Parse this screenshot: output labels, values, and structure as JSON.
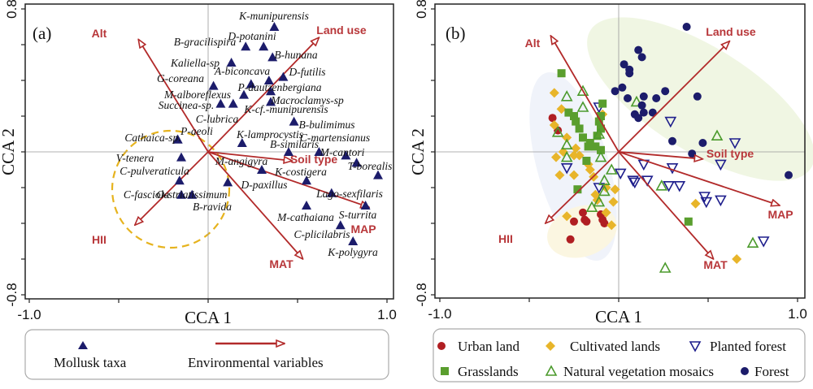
{
  "chart_data": [
    {
      "type": "scatter",
      "panel_label": "(a)",
      "xlabel": "CCA 1",
      "ylabel": "CCA 2",
      "xlim": [
        -1.0,
        1.0
      ],
      "ylim": [
        -0.8,
        0.8
      ],
      "x_tick_labels": [
        "-1.0",
        "1.0"
      ],
      "y_tick_labels": [
        "0.8",
        "-0.8"
      ],
      "colors": {
        "taxa": "#1c1c6b",
        "arrow": "#b22a2a",
        "env_label": "#b8373a",
        "circle": "#e6b31e"
      },
      "taxa": [
        {
          "name": "K-munipurensis",
          "x": 0.37,
          "y": 0.7
        },
        {
          "name": "B-gracilispira",
          "x": 0.21,
          "y": 0.59
        },
        {
          "name": "D-potanini",
          "x": 0.31,
          "y": 0.59
        },
        {
          "name": "B-hunana",
          "x": 0.36,
          "y": 0.53
        },
        {
          "name": "Kaliella-sp",
          "x": 0.13,
          "y": 0.5
        },
        {
          "name": "G-coreana",
          "x": 0.03,
          "y": 0.37
        },
        {
          "name": "A-biconcava",
          "x": 0.34,
          "y": 0.4
        },
        {
          "name": "D-futilis",
          "x": 0.42,
          "y": 0.42
        },
        {
          "name": "P-dautzenbergiana",
          "x": 0.24,
          "y": 0.38
        },
        {
          "name": "M-alboreflexus",
          "x": 0.2,
          "y": 0.32
        },
        {
          "name": "Macroclamys-sp",
          "x": 0.35,
          "y": 0.34
        },
        {
          "name": "K-cf.-munipurensis",
          "x": 0.35,
          "y": 0.28
        },
        {
          "name": "Succinea-sp.",
          "x": 0.07,
          "y": 0.27
        },
        {
          "name": "C-lubrica",
          "x": 0.14,
          "y": 0.27
        },
        {
          "name": "B-bulimimus",
          "x": 0.48,
          "y": 0.17
        },
        {
          "name": "Cathaica-sp.",
          "x": -0.17,
          "y": 0.07
        },
        {
          "name": "P-aeoli",
          "x": -0.17,
          "y": 0.07
        },
        {
          "name": "K-lamprocystis",
          "x": 0.19,
          "y": 0.05
        },
        {
          "name": "B-similaris",
          "x": 0.45,
          "y": 0.0
        },
        {
          "name": "C-martensianus",
          "x": 0.62,
          "y": 0.0
        },
        {
          "name": "M-cantori",
          "x": 0.77,
          "y": -0.02
        },
        {
          "name": "T-borealis",
          "x": 0.83,
          "y": -0.06
        },
        {
          "name": "Lago-sexfilaris",
          "x": 0.95,
          "y": -0.13
        },
        {
          "name": "V-tenera",
          "x": -0.15,
          "y": -0.03
        },
        {
          "name": "C-pulveraticula",
          "x": -0.16,
          "y": -0.16
        },
        {
          "name": "C-fasciola",
          "x": -0.15,
          "y": -0.24
        },
        {
          "name": "B-ravida",
          "x": -0.09,
          "y": -0.24
        },
        {
          "name": "O-striatissimum",
          "x": 0.11,
          "y": -0.17
        },
        {
          "name": "M-angigyra",
          "x": 0.3,
          "y": -0.1
        },
        {
          "name": "D-paxillus",
          "x": 0.55,
          "y": -0.16
        },
        {
          "name": "K-costigera",
          "x": 0.69,
          "y": -0.23
        },
        {
          "name": "M-cathaiana",
          "x": 0.55,
          "y": -0.3
        },
        {
          "name": "S-turrita",
          "x": 0.88,
          "y": -0.3
        },
        {
          "name": "C-plicilabris",
          "x": 0.74,
          "y": -0.41
        },
        {
          "name": "K-polygyra",
          "x": 0.81,
          "y": -0.5
        }
      ],
      "env_variables": [
        {
          "name": "Alt",
          "x": -0.39,
          "y": 0.63
        },
        {
          "name": "Land use",
          "x": 0.62,
          "y": 0.64
        },
        {
          "name": "Soil type",
          "x": 0.47,
          "y": -0.05
        },
        {
          "name": "MAP",
          "x": 0.9,
          "y": -0.31
        },
        {
          "name": "MAT",
          "x": 0.53,
          "y": -0.6
        },
        {
          "name": "HII",
          "x": -0.41,
          "y": -0.41
        }
      ],
      "legend": {
        "taxa": "Mollusk taxa",
        "arrows": "Environmental variables",
        "placement": "bottom"
      }
    },
    {
      "type": "scatter",
      "panel_label": "(b)",
      "xlabel": "CCA 1",
      "ylabel": "CCA 2",
      "xlim": [
        -1.0,
        1.0
      ],
      "ylim": [
        -0.8,
        0.8
      ],
      "x_tick_labels": [
        "-1.0",
        "1.0"
      ],
      "y_tick_labels": [
        "0.8",
        "-0.8"
      ],
      "env_variables": [
        {
          "name": "Alt",
          "x": -0.38,
          "y": 0.65
        },
        {
          "name": "Land use",
          "x": 0.62,
          "y": 0.62
        },
        {
          "name": "Soil type",
          "x": 0.47,
          "y": -0.04
        },
        {
          "name": "MAP",
          "x": 0.9,
          "y": -0.3
        },
        {
          "name": "MAT",
          "x": 0.53,
          "y": -0.6
        },
        {
          "name": "HII",
          "x": -0.41,
          "y": -0.4
        }
      ],
      "series": [
        {
          "name": "Urban land",
          "marker": "circle",
          "color": "#b01e22",
          "points": [
            [
              -0.37,
              0.19
            ],
            [
              -0.34,
              0.12
            ],
            [
              -0.2,
              -0.34
            ],
            [
              -0.25,
              -0.39
            ],
            [
              -0.19,
              -0.38
            ],
            [
              -0.18,
              -0.39
            ],
            [
              -0.1,
              -0.35
            ],
            [
              -0.09,
              -0.38
            ],
            [
              -0.08,
              -0.4
            ],
            [
              -0.27,
              -0.49
            ]
          ]
        },
        {
          "name": "Cultivated lands",
          "marker": "diamond",
          "color": "#e8b52a",
          "points": [
            [
              -0.36,
              0.33
            ],
            [
              -0.32,
              0.24
            ],
            [
              -0.36,
              0.15
            ],
            [
              -0.29,
              0.08
            ],
            [
              -0.24,
              0.02
            ],
            [
              -0.31,
              0.0
            ],
            [
              -0.35,
              -0.03
            ],
            [
              -0.25,
              -0.02
            ],
            [
              -0.22,
              -0.02
            ],
            [
              -0.17,
              -0.07
            ],
            [
              -0.09,
              0.21
            ],
            [
              -0.33,
              -0.13
            ],
            [
              -0.25,
              -0.13
            ],
            [
              -0.16,
              -0.1
            ],
            [
              -0.14,
              -0.14
            ],
            [
              -0.07,
              -0.2
            ],
            [
              -0.02,
              -0.21
            ],
            [
              -0.03,
              -0.28
            ],
            [
              -0.13,
              -0.24
            ],
            [
              -0.12,
              -0.27
            ],
            [
              -0.07,
              -0.34
            ],
            [
              -0.29,
              -0.36
            ],
            [
              -0.04,
              -0.41
            ],
            [
              0.43,
              -0.29
            ],
            [
              0.66,
              -0.6
            ]
          ]
        },
        {
          "name": "Planted forest",
          "marker": "triangle-down-open",
          "color": "#1e1e8c",
          "points": [
            [
              0.29,
              0.17
            ],
            [
              0.65,
              0.05
            ],
            [
              0.57,
              -0.07
            ],
            [
              0.14,
              -0.07
            ],
            [
              0.3,
              -0.09
            ],
            [
              0.01,
              -0.12
            ],
            [
              0.08,
              -0.16
            ],
            [
              0.09,
              -0.17
            ],
            [
              0.16,
              -0.16
            ],
            [
              0.28,
              -0.19
            ],
            [
              0.34,
              -0.19
            ],
            [
              0.48,
              -0.25
            ],
            [
              0.49,
              -0.28
            ],
            [
              0.57,
              -0.27
            ],
            [
              0.81,
              -0.5
            ],
            [
              -0.29,
              -0.09
            ],
            [
              -0.11,
              -0.2
            ],
            [
              -0.11,
              0.25
            ]
          ]
        },
        {
          "name": "Grasslands",
          "marker": "square",
          "color": "#5a9e2e",
          "points": [
            [
              -0.32,
              0.44
            ],
            [
              -0.28,
              0.22
            ],
            [
              -0.25,
              0.2
            ],
            [
              -0.24,
              0.17
            ],
            [
              -0.22,
              0.13
            ],
            [
              -0.2,
              0.08
            ],
            [
              -0.16,
              0.05
            ],
            [
              -0.13,
              0.03
            ],
            [
              -0.1,
              0.01
            ],
            [
              -0.09,
              0.27
            ],
            [
              -0.1,
              0.2
            ],
            [
              -0.11,
              0.17
            ],
            [
              -0.1,
              0.13
            ],
            [
              -0.12,
              0.09
            ],
            [
              -0.17,
              0.03
            ],
            [
              -0.18,
              -0.05
            ],
            [
              -0.23,
              -0.21
            ],
            [
              0.39,
              -0.39
            ]
          ]
        },
        {
          "name": "Natural vegetation mosaics",
          "marker": "triangle-open",
          "color": "#4b9a2c",
          "points": [
            [
              0.1,
              0.28
            ],
            [
              0.55,
              0.09
            ],
            [
              -0.04,
              -0.1
            ],
            [
              0.24,
              -0.19
            ],
            [
              0.75,
              -0.51
            ],
            [
              0.26,
              -0.65
            ],
            [
              -0.08,
              -0.16
            ],
            [
              -0.2,
              0.34
            ],
            [
              -0.29,
              0.31
            ],
            [
              -0.2,
              0.25
            ],
            [
              -0.34,
              0.11
            ],
            [
              -0.11,
              0.1
            ],
            [
              -0.29,
              0.04
            ],
            [
              -0.29,
              -0.03
            ],
            [
              -0.1,
              -0.03
            ],
            [
              -0.08,
              -0.22
            ],
            [
              -0.15,
              -0.31
            ],
            [
              -0.11,
              -0.28
            ]
          ]
        },
        {
          "name": "Forest",
          "marker": "circle",
          "color": "#1c1c6b",
          "points": [
            [
              0.38,
              0.7
            ],
            [
              0.11,
              0.57
            ],
            [
              0.13,
              0.53
            ],
            [
              0.03,
              0.49
            ],
            [
              0.06,
              0.46
            ],
            [
              0.06,
              0.44
            ],
            [
              -0.02,
              0.34
            ],
            [
              0.02,
              0.36
            ],
            [
              0.05,
              0.3
            ],
            [
              0.14,
              0.31
            ],
            [
              0.21,
              0.3
            ],
            [
              0.26,
              0.34
            ],
            [
              0.13,
              0.26
            ],
            [
              0.14,
              0.22
            ],
            [
              0.19,
              0.22
            ],
            [
              0.09,
              0.21
            ],
            [
              0.11,
              0.19
            ],
            [
              0.44,
              0.31
            ],
            [
              0.3,
              0.06
            ],
            [
              0.47,
              0.05
            ],
            [
              0.41,
              -0.01
            ],
            [
              0.95,
              -0.13
            ]
          ]
        }
      ],
      "legend": {
        "placement": "bottom"
      }
    }
  ]
}
